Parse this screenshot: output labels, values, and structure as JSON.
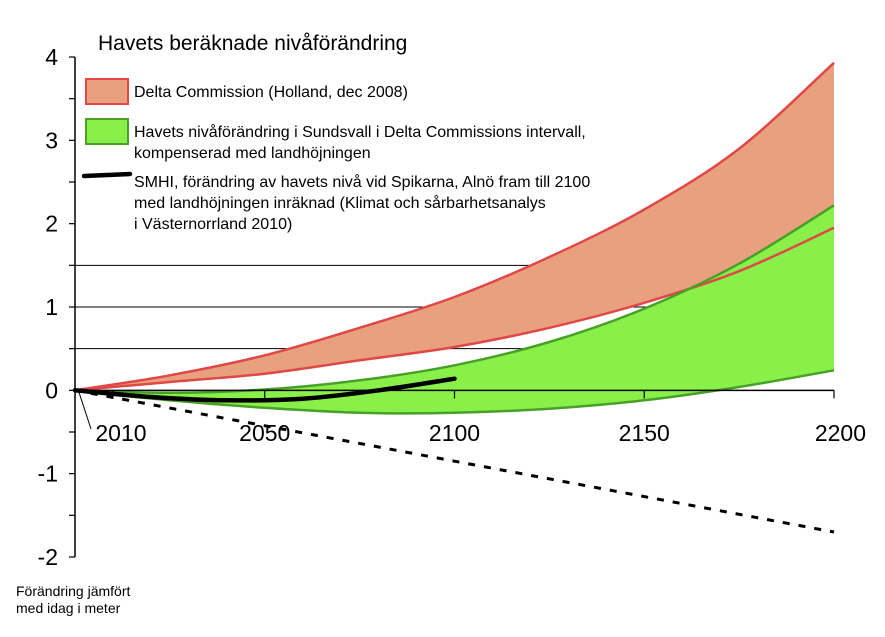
{
  "chart_data": {
    "type": "area",
    "title": "Havets beräknade nivåförändring",
    "ylabel": "Förändring jämfört med idag i meter",
    "xlim": [
      2000,
      2200
    ],
    "ylim": [
      -2,
      4
    ],
    "x_ticks": [
      "2010",
      "2050",
      "2100",
      "2150",
      "2200"
    ],
    "y_ticks": [
      "4",
      "3",
      "2",
      "1",
      "0",
      "-1",
      "-2"
    ],
    "reference_lines": [
      0.5,
      1.0,
      1.5
    ],
    "series": [
      {
        "name": "Delta Commission (Holland, dec 2008)",
        "kind": "band",
        "fill": "#E8A07E",
        "stroke": "#E04848",
        "x": [
          2000,
          2025,
          2050,
          2075,
          2100,
          2125,
          2150,
          2175,
          2200
        ],
        "upper": [
          0.0,
          0.18,
          0.42,
          0.75,
          1.12,
          1.6,
          2.17,
          2.9,
          3.93
        ],
        "lower": [
          0.0,
          0.1,
          0.2,
          0.36,
          0.52,
          0.75,
          1.05,
          1.43,
          1.95
        ]
      },
      {
        "name": "Havets nivåförändring i Sundsvall i Delta Commissions intervall, kompenserad med landhöjningen",
        "kind": "band",
        "fill": "#88F048",
        "stroke": "#48A028",
        "x": [
          2000,
          2025,
          2050,
          2075,
          2100,
          2125,
          2150,
          2175,
          2200
        ],
        "upper": [
          0.0,
          -0.03,
          0.01,
          0.12,
          0.3,
          0.58,
          0.98,
          1.52,
          2.22
        ],
        "lower": [
          0.0,
          -0.12,
          -0.21,
          -0.27,
          -0.27,
          -0.22,
          -0.12,
          0.04,
          0.24
        ]
      },
      {
        "name": "SMHI, förändring av havets nivå vid Spikarna, Alnö fram till 2100 med landhöjningen inräknad (Klimat och sårbarhetsanalys i Västernorrland 2010)",
        "kind": "line",
        "stroke": "#000000",
        "x": [
          2000,
          2020,
          2040,
          2060,
          2080,
          2100
        ],
        "y": [
          0.0,
          -0.08,
          -0.12,
          -0.1,
          0.0,
          0.14
        ]
      },
      {
        "name": "",
        "kind": "dashed",
        "stroke": "#000000",
        "x": [
          2000,
          2200
        ],
        "y": [
          0.0,
          -1.7
        ]
      }
    ],
    "legend": [
      {
        "swatch": "band",
        "fill": "#E8A07E",
        "stroke": "#E04848",
        "lines": [
          "Delta Commission (Holland, dec 2008)"
        ]
      },
      {
        "swatch": "band",
        "fill": "#88F048",
        "stroke": "#48A028",
        "lines": [
          "Havets nivåförändring i Sundsvall i Delta Commissions intervall,",
          "kompenserad med landhöjningen"
        ]
      },
      {
        "swatch": "line",
        "stroke": "#000000",
        "lines": [
          "SMHI, förändring av havets nivå vid Spikarna, Alnö fram till 2100",
          "med landhöjningen inräknad (Klimat och sårbarhetsanalys",
          "i Västernorrland 2010)"
        ]
      }
    ],
    "legend_position": "top-left",
    "grid": false
  }
}
